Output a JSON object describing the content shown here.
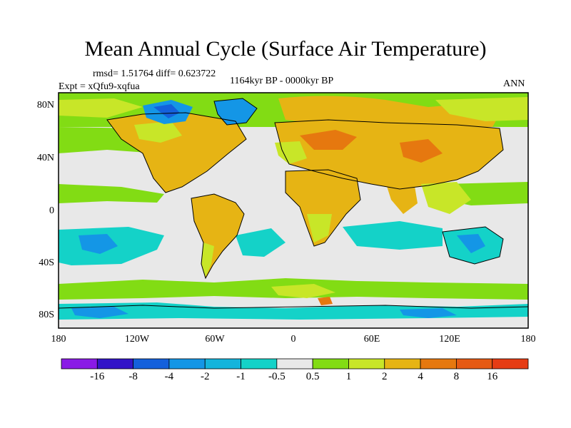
{
  "title": "Mean Annual Cycle (Surface Air Temperature)",
  "stats": "rmsd= 1.51764 diff= 0.623722",
  "experiment": "Expt = xQfu9-xqfua",
  "period": "1164kyr BP - 0000kyr BP",
  "season": "ANN",
  "lat_labels": [
    "80N",
    "40N",
    "0",
    "40S",
    "80S"
  ],
  "lon_labels": [
    "180",
    "120W",
    "60W",
    "0",
    "60E",
    "120E",
    "180"
  ],
  "colorbar": {
    "labels": [
      "-16",
      "-8",
      "-4",
      "-2",
      "-1",
      "-0.5",
      "0.5",
      "1",
      "2",
      "4",
      "8",
      "16"
    ],
    "colors": [
      "#8a1ae6",
      "#3214c8",
      "#1460dc",
      "#1496e6",
      "#14b4dc",
      "#14d2c8",
      "#e8e8e8",
      "#82dc14",
      "#c8e628",
      "#e6b414",
      "#e6780f",
      "#e65a14",
      "#e63c14"
    ]
  },
  "palette": {
    "land_warm": "#e6b414",
    "land_mild": "#c8e628",
    "green": "#82dc14",
    "neutral": "#e8e8e8",
    "cool": "#14d2c8",
    "cold": "#1496e6",
    "colder": "#1460dc",
    "orange": "#e6780f"
  }
}
